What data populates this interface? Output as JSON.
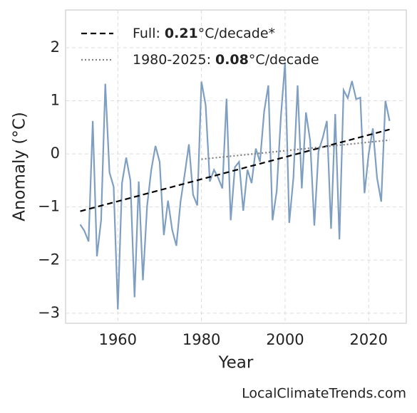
{
  "chart_data": {
    "type": "line",
    "xlabel": "Year",
    "ylabel": "Anomaly (°C)",
    "x": [
      1951,
      1952,
      1953,
      1954,
      1955,
      1956,
      1957,
      1958,
      1959,
      1960,
      1961,
      1962,
      1963,
      1964,
      1965,
      1966,
      1967,
      1968,
      1969,
      1970,
      1971,
      1972,
      1973,
      1974,
      1975,
      1976,
      1977,
      1978,
      1979,
      1980,
      1981,
      1982,
      1983,
      1984,
      1985,
      1986,
      1987,
      1988,
      1989,
      1990,
      1991,
      1992,
      1993,
      1994,
      1995,
      1996,
      1997,
      1998,
      1999,
      2000,
      2001,
      2002,
      2003,
      2004,
      2005,
      2006,
      2007,
      2008,
      2009,
      2010,
      2011,
      2012,
      2013,
      2014,
      2015,
      2016,
      2017,
      2018,
      2019,
      2020,
      2021,
      2022,
      2023,
      2024,
      2025
    ],
    "series": [
      {
        "color": "#7f9fc2",
        "values": [
          -1.33,
          -1.45,
          -1.65,
          0.62,
          -1.93,
          -1.25,
          1.32,
          -0.35,
          -0.62,
          -2.93,
          -0.55,
          -0.07,
          -0.5,
          -2.7,
          -0.52,
          -2.38,
          -0.98,
          -0.3,
          0.15,
          -0.15,
          -1.53,
          -0.88,
          -1.43,
          -1.73,
          -0.9,
          -0.38,
          0.18,
          -0.77,
          -0.97,
          1.36,
          0.92,
          -0.52,
          -0.3,
          -0.45,
          -0.65,
          1.04,
          -1.25,
          -0.25,
          -0.15,
          -1.07,
          -0.3,
          -0.55,
          0.1,
          -0.15,
          0.8,
          1.29,
          -1.25,
          -0.7,
          0.7,
          1.72,
          -1.3,
          -0.45,
          1.29,
          -0.65,
          0.78,
          0.25,
          -1.35,
          0.05,
          0.3,
          0.62,
          -1.41,
          0.75,
          -1.61,
          1.2,
          1.05,
          1.37,
          1.03,
          1.06,
          -0.74,
          0.0,
          0.48,
          -0.45,
          -0.9,
          1.0,
          0.62
        ]
      }
    ],
    "trends": [
      {
        "prefix": "Full:",
        "rate": 0.21,
        "suffix": "°C/decade*",
        "color": "#000000",
        "dash": "dashed",
        "x": [
          1951,
          2025
        ],
        "values": [
          -1.08,
          0.46
        ]
      },
      {
        "prefix": "1980-2025:",
        "rate": 0.08,
        "suffix": "°C/decade",
        "color": "#808080",
        "dash": "dotted",
        "x": [
          1980,
          2025
        ],
        "values": [
          -0.1,
          0.26
        ]
      }
    ],
    "xlim": [
      1947.5,
      2029
    ],
    "ylim": [
      -3.19,
      2.71
    ],
    "xticks": [
      1960,
      1980,
      2000,
      2020
    ],
    "yticks": [
      {
        "value": -3,
        "label": "−3"
      },
      {
        "value": -2,
        "label": "−2"
      },
      {
        "value": -1,
        "label": "−1"
      },
      0,
      1,
      2
    ],
    "grid": true,
    "legend": "upper left",
    "watermark": "LocalClimateTrends.com"
  }
}
